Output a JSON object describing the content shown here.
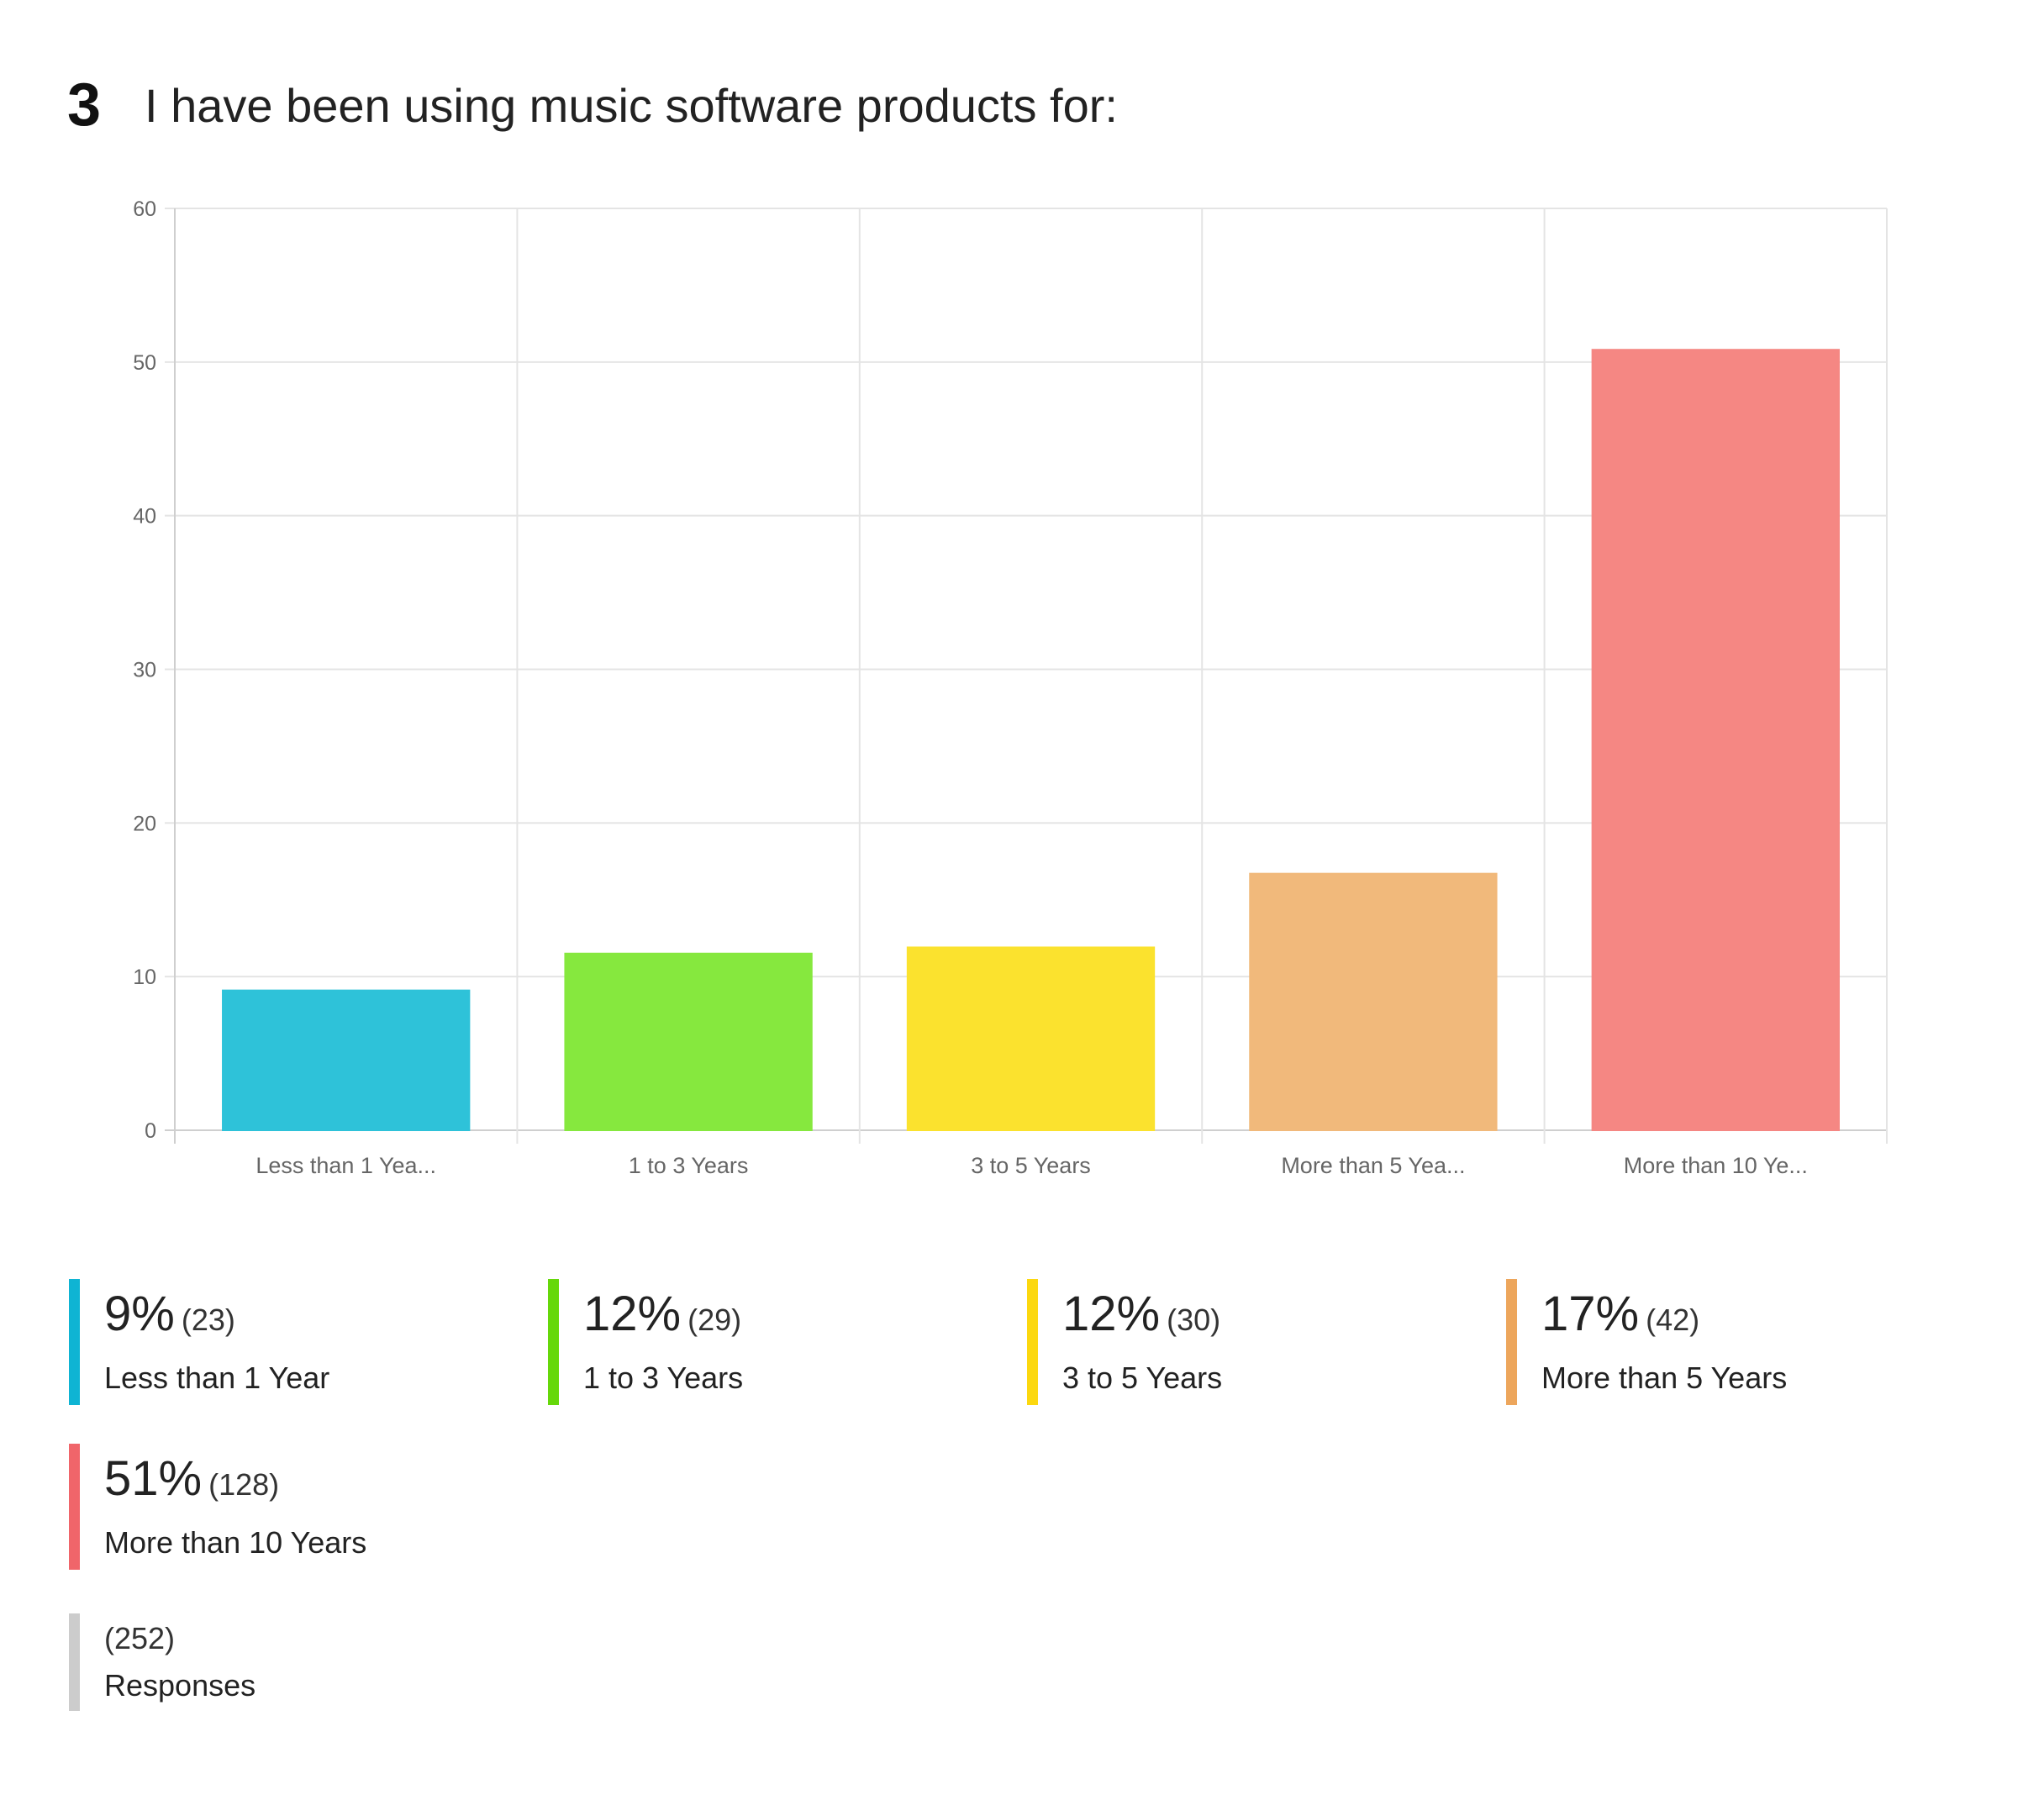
{
  "question": {
    "number": "3",
    "text": "I have been using music software products for:"
  },
  "chart_data": {
    "type": "bar",
    "categories": [
      "Less than 1 Yea...",
      "1 to 3 Years",
      "3 to 5 Years",
      "More than 5 Yea...",
      "More than 10 Ye..."
    ],
    "values": [
      9.1,
      11.5,
      11.9,
      16.7,
      50.8
    ],
    "colors": [
      "#2ec2d9",
      "#86e83e",
      "#fbe22e",
      "#f1b97b",
      "#f58783"
    ],
    "yticks": [
      "0",
      "10",
      "20",
      "30",
      "40",
      "50",
      "60"
    ],
    "ylim": [
      0,
      60
    ],
    "grid": true,
    "title": "",
    "xlabel": "",
    "ylabel": ""
  },
  "legend": {
    "items": [
      {
        "percent": "9%",
        "count": "(23)",
        "label": "Less than 1 Year",
        "color": "#0fb4d3"
      },
      {
        "percent": "12%",
        "count": "(29)",
        "label": "1 to 3 Years",
        "color": "#66d80a"
      },
      {
        "percent": "12%",
        "count": "(30)",
        "label": "3 to 5 Years",
        "color": "#fcd80f"
      },
      {
        "percent": "17%",
        "count": "(42)",
        "label": "More than 5 Years",
        "color": "#eda65c"
      },
      {
        "percent": "51%",
        "count": "(128)",
        "label": "More than 10 Years",
        "color": "#f0656a"
      }
    ],
    "total": {
      "count": "(252)",
      "label": "Responses"
    }
  }
}
